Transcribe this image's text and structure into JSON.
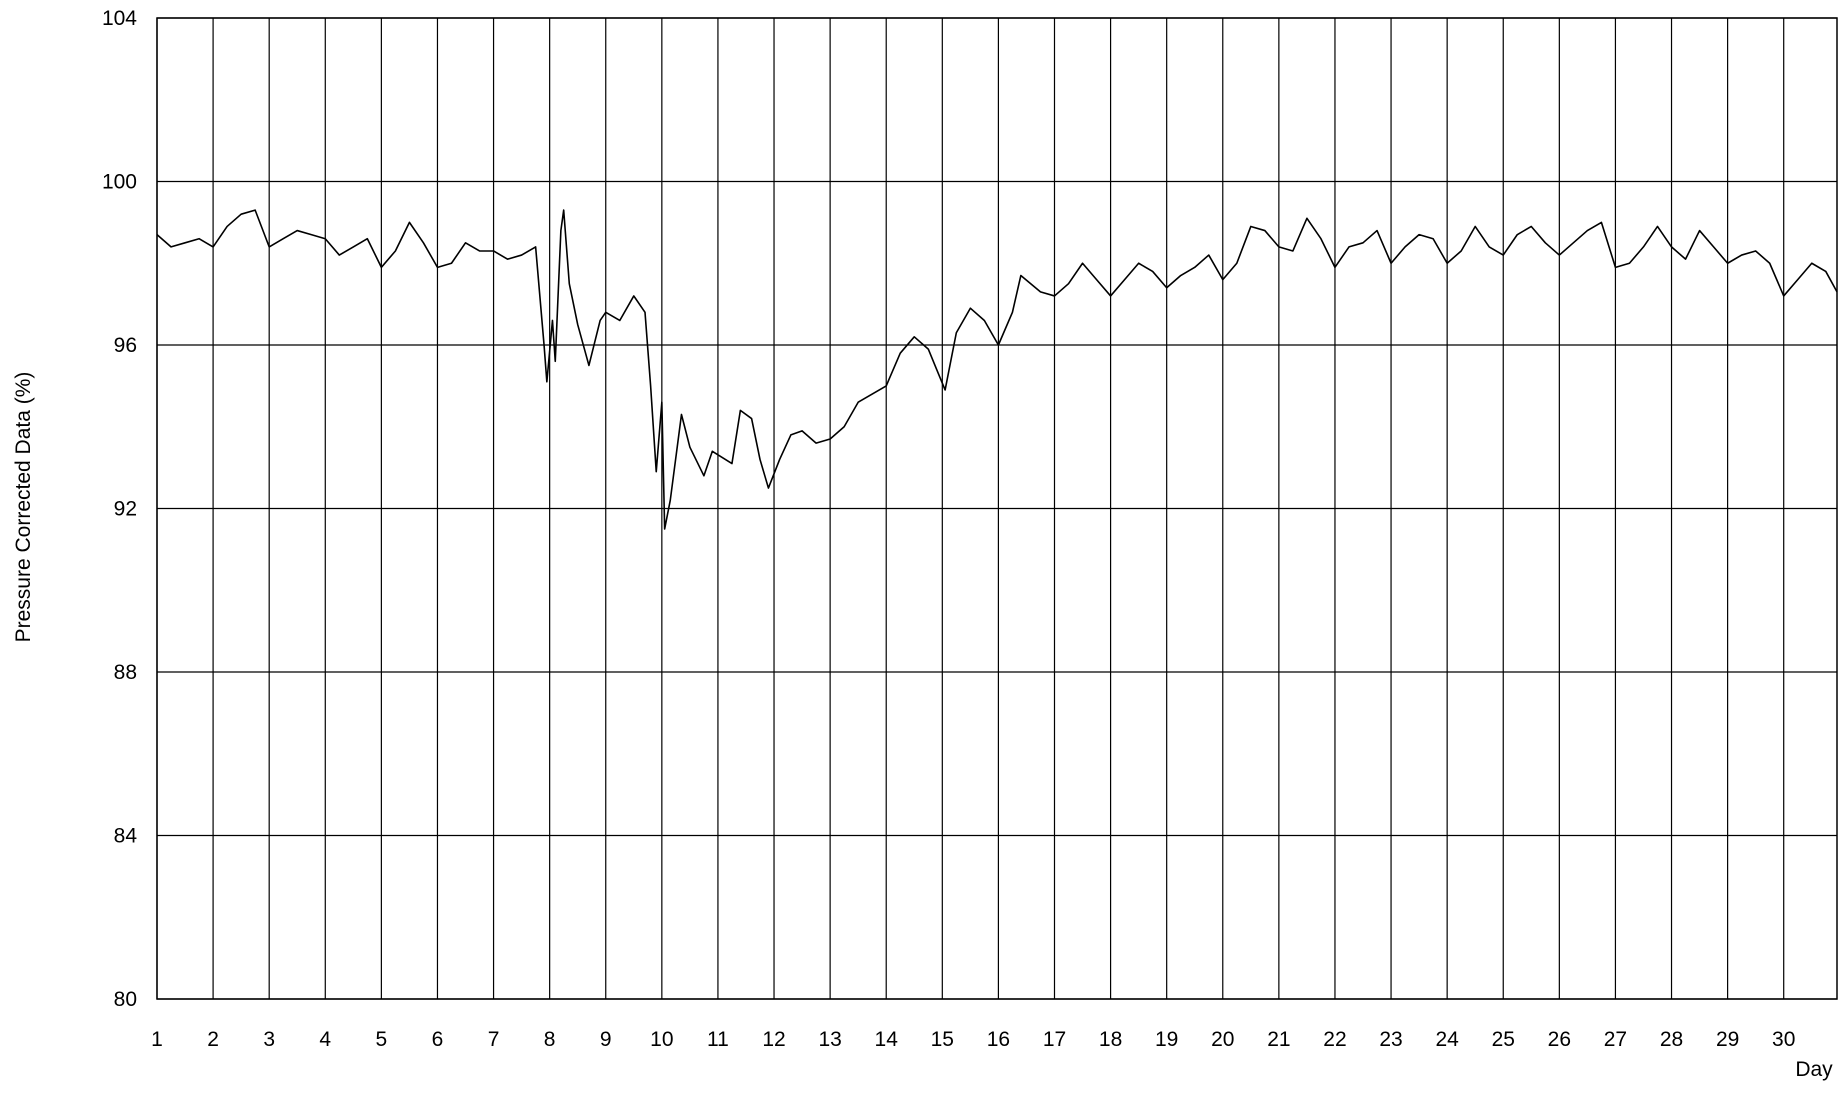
{
  "chart_data": {
    "type": "line",
    "ylabel": "Pressure Corrected Data (%)",
    "xlabel": "Day",
    "xlim": [
      1,
      30.95
    ],
    "ylim": [
      80,
      104
    ],
    "xticks": [
      1,
      2,
      3,
      4,
      5,
      6,
      7,
      8,
      9,
      10,
      11,
      12,
      13,
      14,
      15,
      16,
      17,
      18,
      19,
      20,
      21,
      22,
      23,
      24,
      25,
      26,
      27,
      28,
      29,
      30
    ],
    "yticks": [
      80,
      84,
      88,
      92,
      96,
      100,
      104
    ],
    "grid": true,
    "series": [
      {
        "color": "#000000",
        "x": [
          1,
          1.25,
          1.5,
          1.75,
          2,
          2.25,
          2.5,
          2.75,
          3,
          3.25,
          3.5,
          3.75,
          4,
          4.25,
          4.5,
          4.75,
          5,
          5.25,
          5.5,
          5.75,
          6,
          6.25,
          6.5,
          6.75,
          7,
          7.25,
          7.5,
          7.75,
          7.9,
          7.95,
          8.05,
          8.1,
          8.2,
          8.25,
          8.35,
          8.5,
          8.7,
          8.9,
          9,
          9.25,
          9.5,
          9.7,
          9.8,
          9.9,
          10,
          10.05,
          10.15,
          10.35,
          10.5,
          10.75,
          10.9,
          11.25,
          11.4,
          11.6,
          11.75,
          11.9,
          12.1,
          12.3,
          12.5,
          12.75,
          13,
          13.25,
          13.5,
          13.75,
          14,
          14.25,
          14.5,
          14.75,
          14.9,
          15.05,
          15.25,
          15.5,
          15.75,
          16,
          16.25,
          16.4,
          16.75,
          17,
          17.25,
          17.5,
          17.75,
          18,
          18.25,
          18.5,
          18.75,
          19,
          19.25,
          19.5,
          19.75,
          20,
          20.25,
          20.5,
          20.75,
          21,
          21.25,
          21.5,
          21.75,
          22,
          22.25,
          22.5,
          22.75,
          23,
          23.25,
          23.5,
          23.75,
          24,
          24.25,
          24.5,
          24.75,
          25,
          25.25,
          25.5,
          25.75,
          26,
          26.25,
          26.5,
          26.75,
          27,
          27.25,
          27.5,
          27.75,
          28,
          28.25,
          28.5,
          28.75,
          29,
          29.25,
          29.5,
          29.75,
          30,
          30.25,
          30.5,
          30.75,
          30.95
        ],
        "values": [
          98.7,
          98.4,
          98.5,
          98.6,
          98.4,
          98.9,
          99.2,
          99.3,
          98.4,
          98.6,
          98.8,
          98.7,
          98.6,
          98.2,
          98.4,
          98.6,
          97.9,
          98.3,
          99.0,
          98.5,
          97.9,
          98.0,
          98.5,
          98.3,
          98.3,
          98.1,
          98.2,
          98.4,
          96.0,
          95.1,
          96.6,
          95.6,
          98.8,
          99.3,
          97.5,
          96.5,
          95.5,
          96.6,
          96.8,
          96.6,
          97.2,
          96.8,
          95.0,
          92.9,
          94.6,
          91.5,
          92.2,
          94.3,
          93.5,
          92.8,
          93.4,
          93.1,
          94.4,
          94.2,
          93.2,
          92.5,
          93.2,
          93.8,
          93.9,
          93.6,
          93.7,
          94.0,
          94.6,
          94.8,
          95.0,
          95.8,
          96.2,
          95.9,
          95.4,
          94.9,
          96.3,
          96.9,
          96.6,
          96.0,
          96.8,
          97.7,
          97.3,
          97.2,
          97.5,
          98.0,
          97.6,
          97.2,
          97.6,
          98.0,
          97.8,
          97.4,
          97.7,
          97.9,
          98.2,
          97.6,
          98.0,
          98.9,
          98.8,
          98.4,
          98.3,
          99.1,
          98.6,
          97.9,
          98.4,
          98.5,
          98.8,
          98.0,
          98.4,
          98.7,
          98.6,
          98.0,
          98.3,
          98.9,
          98.4,
          98.2,
          98.7,
          98.9,
          98.5,
          98.2,
          98.5,
          98.8,
          99.0,
          97.9,
          98.0,
          98.4,
          98.9,
          98.4,
          98.1,
          98.8,
          98.4,
          98.0,
          98.2,
          98.3,
          98.0,
          97.2,
          97.6,
          98.0,
          97.8,
          97.3
        ]
      }
    ]
  }
}
